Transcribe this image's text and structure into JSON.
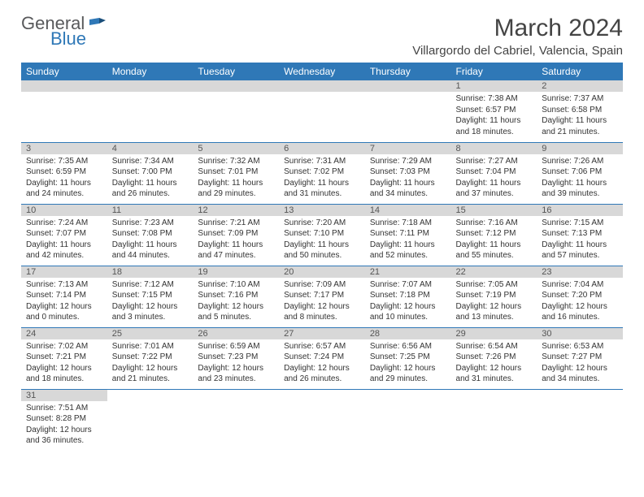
{
  "logo": {
    "general": "General",
    "blue": "Blue"
  },
  "title": "March 2024",
  "location": "Villargordo del Cabriel, Valencia, Spain",
  "colors": {
    "header_bg": "#2f78b7",
    "daynum_bg": "#d8d8d8",
    "text": "#333333"
  },
  "weekdays": [
    "Sunday",
    "Monday",
    "Tuesday",
    "Wednesday",
    "Thursday",
    "Friday",
    "Saturday"
  ],
  "weeks": [
    [
      null,
      null,
      null,
      null,
      null,
      {
        "n": "1",
        "sr": "Sunrise: 7:38 AM",
        "ss": "Sunset: 6:57 PM",
        "dl1": "Daylight: 11 hours",
        "dl2": "and 18 minutes."
      },
      {
        "n": "2",
        "sr": "Sunrise: 7:37 AM",
        "ss": "Sunset: 6:58 PM",
        "dl1": "Daylight: 11 hours",
        "dl2": "and 21 minutes."
      }
    ],
    [
      {
        "n": "3",
        "sr": "Sunrise: 7:35 AM",
        "ss": "Sunset: 6:59 PM",
        "dl1": "Daylight: 11 hours",
        "dl2": "and 24 minutes."
      },
      {
        "n": "4",
        "sr": "Sunrise: 7:34 AM",
        "ss": "Sunset: 7:00 PM",
        "dl1": "Daylight: 11 hours",
        "dl2": "and 26 minutes."
      },
      {
        "n": "5",
        "sr": "Sunrise: 7:32 AM",
        "ss": "Sunset: 7:01 PM",
        "dl1": "Daylight: 11 hours",
        "dl2": "and 29 minutes."
      },
      {
        "n": "6",
        "sr": "Sunrise: 7:31 AM",
        "ss": "Sunset: 7:02 PM",
        "dl1": "Daylight: 11 hours",
        "dl2": "and 31 minutes."
      },
      {
        "n": "7",
        "sr": "Sunrise: 7:29 AM",
        "ss": "Sunset: 7:03 PM",
        "dl1": "Daylight: 11 hours",
        "dl2": "and 34 minutes."
      },
      {
        "n": "8",
        "sr": "Sunrise: 7:27 AM",
        "ss": "Sunset: 7:04 PM",
        "dl1": "Daylight: 11 hours",
        "dl2": "and 37 minutes."
      },
      {
        "n": "9",
        "sr": "Sunrise: 7:26 AM",
        "ss": "Sunset: 7:06 PM",
        "dl1": "Daylight: 11 hours",
        "dl2": "and 39 minutes."
      }
    ],
    [
      {
        "n": "10",
        "sr": "Sunrise: 7:24 AM",
        "ss": "Sunset: 7:07 PM",
        "dl1": "Daylight: 11 hours",
        "dl2": "and 42 minutes."
      },
      {
        "n": "11",
        "sr": "Sunrise: 7:23 AM",
        "ss": "Sunset: 7:08 PM",
        "dl1": "Daylight: 11 hours",
        "dl2": "and 44 minutes."
      },
      {
        "n": "12",
        "sr": "Sunrise: 7:21 AM",
        "ss": "Sunset: 7:09 PM",
        "dl1": "Daylight: 11 hours",
        "dl2": "and 47 minutes."
      },
      {
        "n": "13",
        "sr": "Sunrise: 7:20 AM",
        "ss": "Sunset: 7:10 PM",
        "dl1": "Daylight: 11 hours",
        "dl2": "and 50 minutes."
      },
      {
        "n": "14",
        "sr": "Sunrise: 7:18 AM",
        "ss": "Sunset: 7:11 PM",
        "dl1": "Daylight: 11 hours",
        "dl2": "and 52 minutes."
      },
      {
        "n": "15",
        "sr": "Sunrise: 7:16 AM",
        "ss": "Sunset: 7:12 PM",
        "dl1": "Daylight: 11 hours",
        "dl2": "and 55 minutes."
      },
      {
        "n": "16",
        "sr": "Sunrise: 7:15 AM",
        "ss": "Sunset: 7:13 PM",
        "dl1": "Daylight: 11 hours",
        "dl2": "and 57 minutes."
      }
    ],
    [
      {
        "n": "17",
        "sr": "Sunrise: 7:13 AM",
        "ss": "Sunset: 7:14 PM",
        "dl1": "Daylight: 12 hours",
        "dl2": "and 0 minutes."
      },
      {
        "n": "18",
        "sr": "Sunrise: 7:12 AM",
        "ss": "Sunset: 7:15 PM",
        "dl1": "Daylight: 12 hours",
        "dl2": "and 3 minutes."
      },
      {
        "n": "19",
        "sr": "Sunrise: 7:10 AM",
        "ss": "Sunset: 7:16 PM",
        "dl1": "Daylight: 12 hours",
        "dl2": "and 5 minutes."
      },
      {
        "n": "20",
        "sr": "Sunrise: 7:09 AM",
        "ss": "Sunset: 7:17 PM",
        "dl1": "Daylight: 12 hours",
        "dl2": "and 8 minutes."
      },
      {
        "n": "21",
        "sr": "Sunrise: 7:07 AM",
        "ss": "Sunset: 7:18 PM",
        "dl1": "Daylight: 12 hours",
        "dl2": "and 10 minutes."
      },
      {
        "n": "22",
        "sr": "Sunrise: 7:05 AM",
        "ss": "Sunset: 7:19 PM",
        "dl1": "Daylight: 12 hours",
        "dl2": "and 13 minutes."
      },
      {
        "n": "23",
        "sr": "Sunrise: 7:04 AM",
        "ss": "Sunset: 7:20 PM",
        "dl1": "Daylight: 12 hours",
        "dl2": "and 16 minutes."
      }
    ],
    [
      {
        "n": "24",
        "sr": "Sunrise: 7:02 AM",
        "ss": "Sunset: 7:21 PM",
        "dl1": "Daylight: 12 hours",
        "dl2": "and 18 minutes."
      },
      {
        "n": "25",
        "sr": "Sunrise: 7:01 AM",
        "ss": "Sunset: 7:22 PM",
        "dl1": "Daylight: 12 hours",
        "dl2": "and 21 minutes."
      },
      {
        "n": "26",
        "sr": "Sunrise: 6:59 AM",
        "ss": "Sunset: 7:23 PM",
        "dl1": "Daylight: 12 hours",
        "dl2": "and 23 minutes."
      },
      {
        "n": "27",
        "sr": "Sunrise: 6:57 AM",
        "ss": "Sunset: 7:24 PM",
        "dl1": "Daylight: 12 hours",
        "dl2": "and 26 minutes."
      },
      {
        "n": "28",
        "sr": "Sunrise: 6:56 AM",
        "ss": "Sunset: 7:25 PM",
        "dl1": "Daylight: 12 hours",
        "dl2": "and 29 minutes."
      },
      {
        "n": "29",
        "sr": "Sunrise: 6:54 AM",
        "ss": "Sunset: 7:26 PM",
        "dl1": "Daylight: 12 hours",
        "dl2": "and 31 minutes."
      },
      {
        "n": "30",
        "sr": "Sunrise: 6:53 AM",
        "ss": "Sunset: 7:27 PM",
        "dl1": "Daylight: 12 hours",
        "dl2": "and 34 minutes."
      }
    ],
    [
      {
        "n": "31",
        "sr": "Sunrise: 7:51 AM",
        "ss": "Sunset: 8:28 PM",
        "dl1": "Daylight: 12 hours",
        "dl2": "and 36 minutes."
      },
      null,
      null,
      null,
      null,
      null,
      null
    ]
  ]
}
